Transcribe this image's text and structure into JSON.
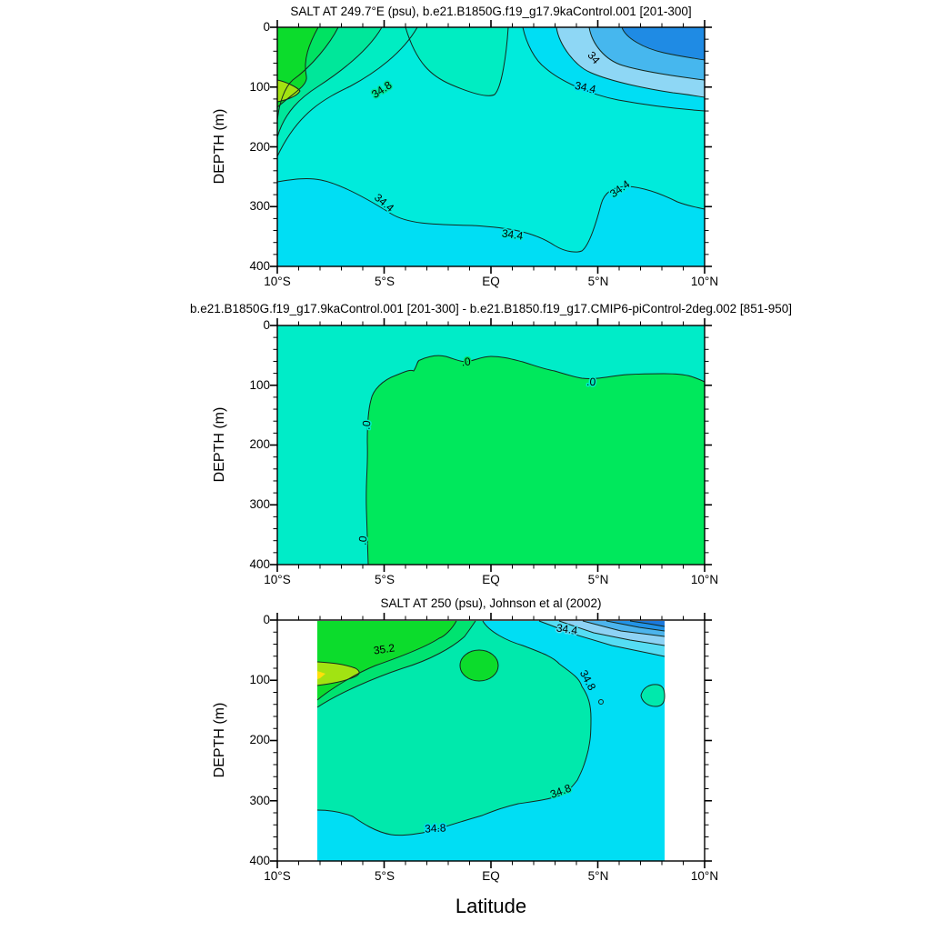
{
  "x_axis_title": "Latitude",
  "y_axis_title": "DEPTH (m)",
  "x_ticks": [
    "10°S",
    "5°S",
    "EQ",
    "5°N",
    "10°N"
  ],
  "y_ticks": [
    "0",
    "100",
    "200",
    "300",
    "400"
  ],
  "panels": [
    {
      "title": "SALT AT 249.7°E (psu), b.e21.B1850G.f19_g17.9kaControl.001 [201-300]",
      "labels": [
        "34.8",
        "34",
        "34.4",
        "34.4",
        "34.4",
        "34.4"
      ]
    },
    {
      "title": "b.e21.B1850G.f19_g17.9kaControl.001 [201-300] - b.e21.B1850.f19_g17.CMIP6-piControl-2deg.002 [851-950]",
      "labels": [
        ".0",
        ".0",
        ".0",
        ".0"
      ]
    },
    {
      "title": "SALT AT 250 (psu), Johnson et al (2002)",
      "labels": [
        "35.2",
        "34.4",
        "34.8",
        "34.8",
        "34.8"
      ]
    }
  ],
  "palette": {
    "blue_lt_33_8": "#1f8be4",
    "blue_33_8_34": "#46b7ee",
    "pale_blue_34_34_2": "#8ed7f5",
    "cyan_34_2_34_4": "#00def4",
    "cyan_34_4_34_6": "#00ebdc",
    "turquoise_34_6_34_8": "#00edc2",
    "aqua_34_8_35": "#00e79a",
    "spring_35_35_2": "#00e262",
    "green_35_2_35_4": "#0cdc2c",
    "chartreuse_gt_35_4": "#a2e312",
    "yellow_gt_35_6": "#ffe00a",
    "diff_negative": "#00ecc8",
    "diff_positive": "#00e85c"
  },
  "chart_data": [
    {
      "type": "contour",
      "title": "SALT AT 249.7°E (psu), b.e21.B1850G.f19_g17.9kaControl.001 [201-300]",
      "xlabel": "Latitude",
      "ylabel": "DEPTH (m)",
      "x_ticks": [
        "10°S",
        "5°S",
        "EQ",
        "5°N",
        "10°N"
      ],
      "x_range_deg": [
        -10,
        10
      ],
      "y_range_m": [
        0,
        400
      ],
      "y_axis_reversed": true,
      "units": "psu",
      "contour_interval": 0.2,
      "labeled_contours": [
        34,
        34.4,
        34.8
      ],
      "field_summary": "Subsurface salinity maximum >35.4 psu near 10°S at ~100 m depth (green/yellow-green); fresh surface pool <33.8 psu near 10°N (blue); 34.4 isohaline runs near 200-280 m depth across the section and shoals north of 5°N; deep water below ~300 m is 34.2-34.4 (cyan)."
    },
    {
      "type": "contour",
      "title": "b.e21.B1850G.f19_g17.9kaControl.001 [201-300] - b.e21.B1850.f19_g17.CMIP6-piControl-2deg.002 [851-950]",
      "xlabel": "Latitude",
      "ylabel": "DEPTH (m)",
      "x_ticks": [
        "10°S",
        "5°S",
        "EQ",
        "5°N",
        "10°N"
      ],
      "x_range_deg": [
        -10,
        10
      ],
      "y_range_m": [
        0,
        400
      ],
      "y_axis_reversed": true,
      "units": "psu difference",
      "labeled_contours": [
        0
      ],
      "field_summary": "Salinity difference field with a single 0 contour: positive (green) region below ~80-100 m depth and north of ~6°S; near-zero/negative (turquoise) in the upper ~100 m and in the southwest corner south of ~6°S."
    },
    {
      "type": "contour",
      "title": "SALT AT 250 (psu), Johnson et al (2002)",
      "xlabel": "Latitude",
      "ylabel": "DEPTH (m)",
      "x_ticks": [
        "10°S",
        "5°S",
        "EQ",
        "5°N",
        "10°N"
      ],
      "x_range_deg": [
        -10,
        10
      ],
      "x_data_range_deg": [
        -8,
        8
      ],
      "y_range_m": [
        0,
        400
      ],
      "y_axis_reversed": true,
      "units": "psu",
      "contour_interval": 0.2,
      "labeled_contours": [
        34.4,
        34.8,
        35.2
      ],
      "field_summary": "Observed salinity: maximum >35.4 psu near 8°S at ~100 m (yellow-green core); closed 35.2 cell near 1°S at ~90 m; interior 34.8-35.2 (aquamarine); 34.8 isohaline bounds interior near 320 m and at ~5°N; fresh <33.8 surface water at 7-8°N (dark blue); data span only ~8°S-8°N (white margins)."
    }
  ]
}
